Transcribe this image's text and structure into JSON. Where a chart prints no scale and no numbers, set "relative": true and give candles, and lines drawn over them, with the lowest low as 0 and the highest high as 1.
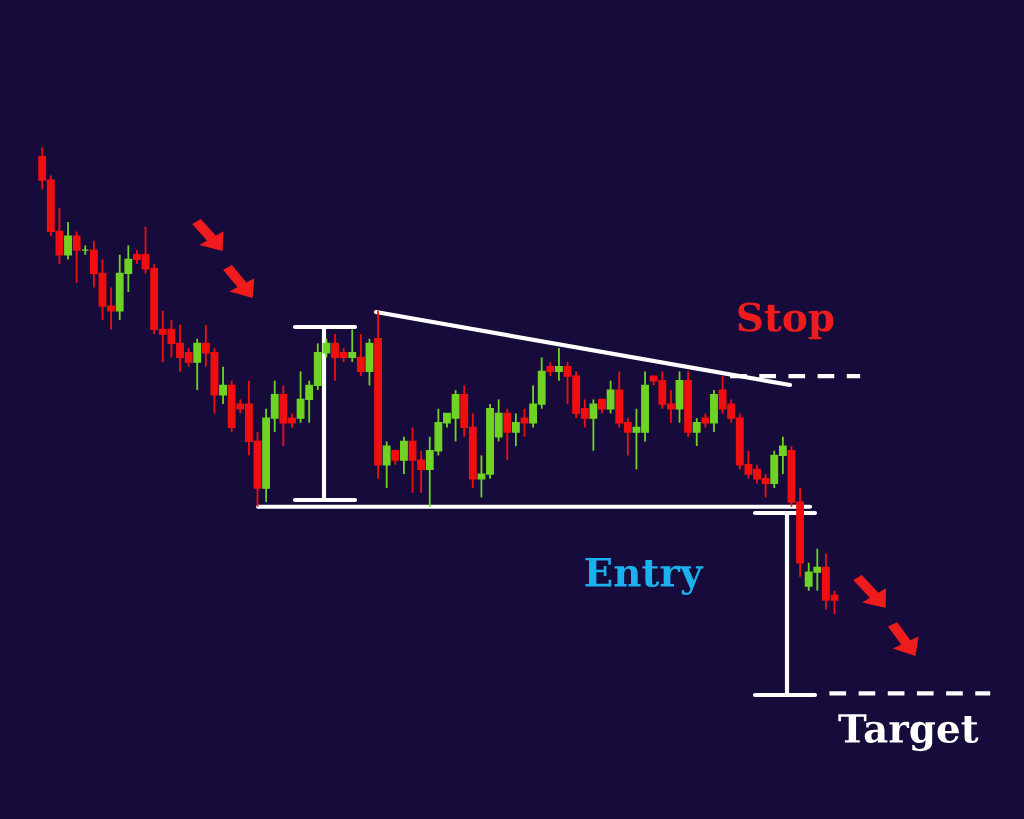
{
  "chart_data": {
    "type": "candlestick",
    "relative": true,
    "categories": [
      null,
      null,
      null,
      null,
      null,
      null,
      null,
      null,
      null,
      null,
      null,
      null,
      null,
      null,
      null,
      null,
      null,
      null,
      null,
      null,
      null,
      null,
      null,
      null,
      null,
      null,
      null,
      null,
      null,
      null,
      null,
      null,
      null,
      null,
      null,
      null,
      null,
      null,
      null,
      null,
      null,
      null,
      null,
      null,
      null,
      null,
      null,
      null,
      null,
      null,
      null,
      null,
      null,
      null,
      null,
      null,
      null,
      null,
      null,
      null,
      null,
      null,
      null,
      null,
      null,
      null,
      null,
      null,
      null,
      null,
      null,
      null,
      null,
      null,
      null,
      null,
      null,
      null,
      null,
      null,
      null,
      null,
      null,
      null,
      null,
      null,
      null,
      null,
      null,
      null,
      null,
      null,
      null
    ],
    "ohlc": [
      [
        0.98,
        1.0,
        0.91,
        0.93
      ],
      [
        0.93,
        0.94,
        0.81,
        0.82
      ],
      [
        0.82,
        0.87,
        0.75,
        0.77
      ],
      [
        0.77,
        0.84,
        0.76,
        0.81
      ],
      [
        0.81,
        0.82,
        0.71,
        0.78
      ],
      [
        0.78,
        0.79,
        0.77,
        0.78
      ],
      [
        0.78,
        0.8,
        0.7,
        0.73
      ],
      [
        0.73,
        0.76,
        0.63,
        0.66
      ],
      [
        0.66,
        0.7,
        0.61,
        0.65
      ],
      [
        0.65,
        0.77,
        0.63,
        0.73
      ],
      [
        0.73,
        0.79,
        0.69,
        0.76
      ],
      [
        0.77,
        0.78,
        0.75,
        0.76
      ],
      [
        0.77,
        0.83,
        0.73,
        0.74
      ],
      [
        0.74,
        0.75,
        0.6,
        0.61
      ],
      [
        0.61,
        0.65,
        0.54,
        0.6
      ],
      [
        0.61,
        0.63,
        0.55,
        0.58
      ],
      [
        0.58,
        0.62,
        0.52,
        0.55
      ],
      [
        0.56,
        0.57,
        0.53,
        0.54
      ],
      [
        0.54,
        0.59,
        0.48,
        0.58
      ],
      [
        0.58,
        0.62,
        0.53,
        0.56
      ],
      [
        0.56,
        0.57,
        0.43,
        0.47
      ],
      [
        0.47,
        0.53,
        0.45,
        0.49
      ],
      [
        0.49,
        0.5,
        0.39,
        0.4
      ],
      [
        0.45,
        0.46,
        0.43,
        0.44
      ],
      [
        0.45,
        0.5,
        0.34,
        0.37
      ],
      [
        0.37,
        0.39,
        0.23,
        0.27
      ],
      [
        0.27,
        0.44,
        0.24,
        0.42
      ],
      [
        0.42,
        0.5,
        0.39,
        0.47
      ],
      [
        0.47,
        0.49,
        0.36,
        0.41
      ],
      [
        0.42,
        0.43,
        0.4,
        0.41
      ],
      [
        0.42,
        0.52,
        0.41,
        0.46
      ],
      [
        0.46,
        0.5,
        0.41,
        0.49
      ],
      [
        0.49,
        0.58,
        0.48,
        0.56
      ],
      [
        0.56,
        0.59,
        0.55,
        0.58
      ],
      [
        0.58,
        0.6,
        0.5,
        0.55
      ],
      [
        0.56,
        0.57,
        0.54,
        0.55
      ],
      [
        0.55,
        0.61,
        0.54,
        0.56
      ],
      [
        0.55,
        0.6,
        0.51,
        0.52
      ],
      [
        0.52,
        0.59,
        0.49,
        0.58
      ],
      [
        0.59,
        0.65,
        0.29,
        0.32
      ],
      [
        0.32,
        0.37,
        0.27,
        0.36
      ],
      [
        0.35,
        0.35,
        0.32,
        0.33
      ],
      [
        0.33,
        0.38,
        0.3,
        0.37
      ],
      [
        0.37,
        0.4,
        0.26,
        0.33
      ],
      [
        0.33,
        0.35,
        0.26,
        0.31
      ],
      [
        0.31,
        0.38,
        0.23,
        0.35
      ],
      [
        0.35,
        0.44,
        0.34,
        0.41
      ],
      [
        0.41,
        0.43,
        0.4,
        0.43
      ],
      [
        0.42,
        0.48,
        0.37,
        0.47
      ],
      [
        0.47,
        0.49,
        0.38,
        0.4
      ],
      [
        0.4,
        0.43,
        0.27,
        0.29
      ],
      [
        0.29,
        0.34,
        0.25,
        0.3
      ],
      [
        0.3,
        0.45,
        0.29,
        0.44
      ],
      [
        0.38,
        0.46,
        0.37,
        0.43
      ],
      [
        0.43,
        0.44,
        0.33,
        0.39
      ],
      [
        0.39,
        0.43,
        0.36,
        0.41
      ],
      [
        0.42,
        0.44,
        0.38,
        0.41
      ],
      [
        0.41,
        0.49,
        0.4,
        0.45
      ],
      [
        0.45,
        0.55,
        0.44,
        0.52
      ],
      [
        0.53,
        0.54,
        0.51,
        0.52
      ],
      [
        0.52,
        0.57,
        0.5,
        0.53
      ],
      [
        0.53,
        0.54,
        0.45,
        0.51
      ],
      [
        0.51,
        0.52,
        0.42,
        0.43
      ],
      [
        0.44,
        0.46,
        0.4,
        0.42
      ],
      [
        0.42,
        0.46,
        0.35,
        0.45
      ],
      [
        0.46,
        0.46,
        0.43,
        0.44
      ],
      [
        0.44,
        0.5,
        0.43,
        0.48
      ],
      [
        0.48,
        0.52,
        0.4,
        0.41
      ],
      [
        0.41,
        0.42,
        0.34,
        0.39
      ],
      [
        0.39,
        0.44,
        0.31,
        0.4
      ],
      [
        0.39,
        0.52,
        0.37,
        0.49
      ],
      [
        0.51,
        0.51,
        0.49,
        0.5
      ],
      [
        0.5,
        0.52,
        0.44,
        0.45
      ],
      [
        0.45,
        0.48,
        0.41,
        0.44
      ],
      [
        0.44,
        0.52,
        0.41,
        0.5
      ],
      [
        0.5,
        0.52,
        0.38,
        0.39
      ],
      [
        0.39,
        0.42,
        0.36,
        0.41
      ],
      [
        0.42,
        0.43,
        0.4,
        0.41
      ],
      [
        0.41,
        0.48,
        0.39,
        0.47
      ],
      [
        0.48,
        0.51,
        0.43,
        0.44
      ],
      [
        0.45,
        0.46,
        0.41,
        0.42
      ],
      [
        0.42,
        0.43,
        0.31,
        0.32
      ],
      [
        0.32,
        0.35,
        0.29,
        0.3
      ],
      [
        0.31,
        0.32,
        0.28,
        0.29
      ],
      [
        0.29,
        0.3,
        0.25,
        0.28
      ],
      [
        0.28,
        0.35,
        0.27,
        0.34
      ],
      [
        0.34,
        0.38,
        0.3,
        0.36
      ],
      [
        0.35,
        0.36,
        0.23,
        0.24
      ],
      [
        0.24,
        0.27,
        0.08,
        0.11
      ],
      [
        0.06,
        0.11,
        0.05,
        0.09
      ],
      [
        0.09,
        0.14,
        0.05,
        0.1
      ],
      [
        0.1,
        0.13,
        0.01,
        0.03
      ],
      [
        0.04,
        0.05,
        0.0,
        0.03
      ]
    ],
    "ref_lines": [
      {
        "axis": "y",
        "value": 0.51,
        "label": "Stop",
        "color": "#ffffff",
        "line_style": "dashed"
      },
      {
        "axis": "y",
        "value": 0.23,
        "label": "Entry",
        "color": "#ffffff",
        "line_style": "solid"
      },
      {
        "axis": "y",
        "value": -0.17,
        "label": "Target",
        "color": "#ffffff",
        "line_style": "dashed"
      }
    ]
  }
}
